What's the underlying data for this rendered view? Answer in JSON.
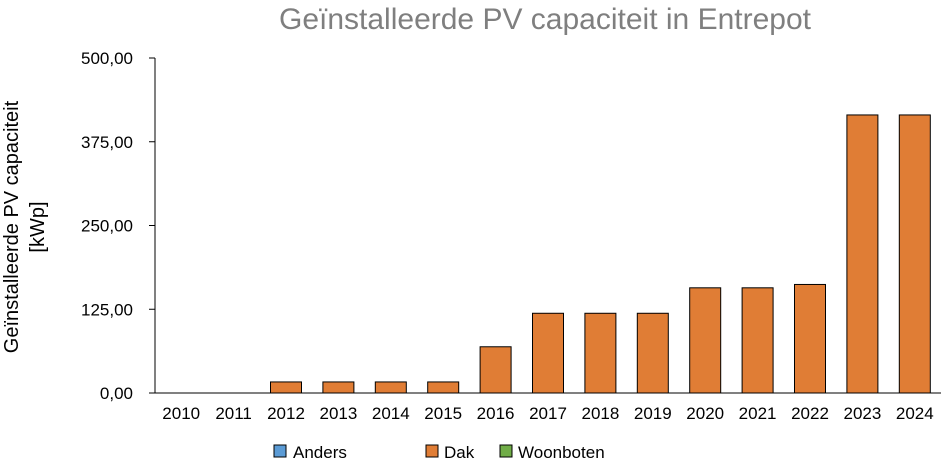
{
  "chart_data": {
    "type": "bar",
    "title": "Geïnstalleerde PV capaciteit in Entrepot",
    "ylabel_lines": [
      "Geïnstalleerde PV capaciteit",
      "[kWp]"
    ],
    "categories": [
      "2010",
      "2011",
      "2012",
      "2013",
      "2014",
      "2015",
      "2016",
      "2017",
      "2018",
      "2019",
      "2020",
      "2021",
      "2022",
      "2023",
      "2024"
    ],
    "series": [
      {
        "name": "Anders",
        "color": "#5b9bd5",
        "values": [
          0,
          0,
          0,
          0,
          0,
          0,
          0,
          0,
          0,
          0,
          0,
          0,
          0,
          0,
          0
        ]
      },
      {
        "name": "Dak",
        "color": "#e07d35",
        "values": [
          0,
          0,
          16.5,
          16.5,
          16.5,
          16.5,
          69,
          119,
          119,
          119,
          157,
          157,
          162,
          415,
          415
        ]
      },
      {
        "name": "Woonboten",
        "color": "#70ad47",
        "values": [
          0,
          0,
          0,
          0,
          0,
          0,
          0,
          0,
          0,
          0,
          0,
          0,
          0,
          0,
          0
        ]
      }
    ],
    "ylim": [
      0,
      500
    ],
    "yticks": [
      "0,00",
      "125,00",
      "250,00",
      "375,00",
      "500,00"
    ],
    "grid": false,
    "legend_position": "bottom"
  }
}
